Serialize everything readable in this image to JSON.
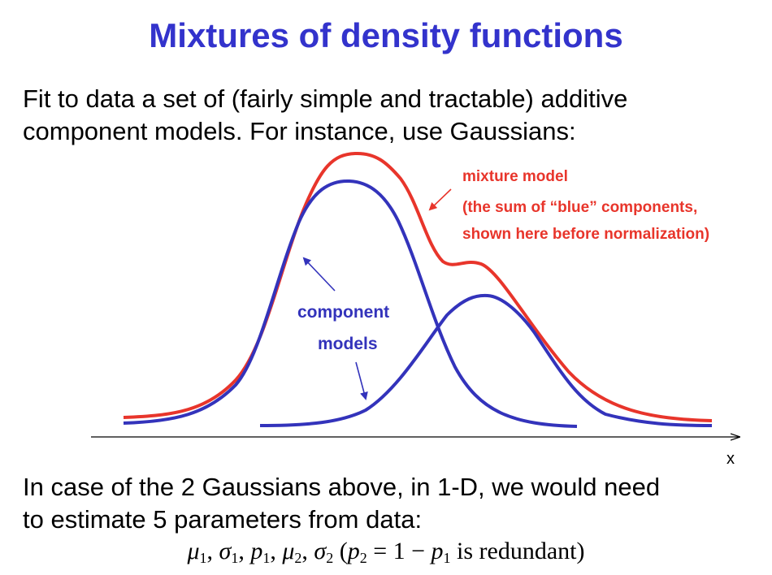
{
  "slide": {
    "title": "Mixtures of density functions",
    "intro_line1": "Fit to data a set of (fairly simple and tractable) additive",
    "intro_line2": "component models. For instance, use Gaussians:",
    "outro_line1": "In case of the 2 Gaussians above, in 1-D, we would need",
    "outro_line2": "to estimate 5 parameters from data:"
  },
  "diagram": {
    "mixture_label": "mixture model",
    "mixture_note_line1": "(the sum of “blue” components,",
    "mixture_note_line2": "shown here before normalization)",
    "component_label_line1": "component",
    "component_label_line2": "models",
    "axis_label": "x",
    "colors": {
      "mixture": "#e8352b",
      "component": "#3333bb",
      "axis": "#000000",
      "title": "#3333cc"
    }
  },
  "formula": {
    "mu": "μ",
    "sigma": "σ",
    "p": "p",
    "sub1": "1",
    "sub2": "2",
    "comma": ",",
    "open": "(",
    "close": "is redundant)",
    "equals_one_minus": "= 1 −"
  }
}
